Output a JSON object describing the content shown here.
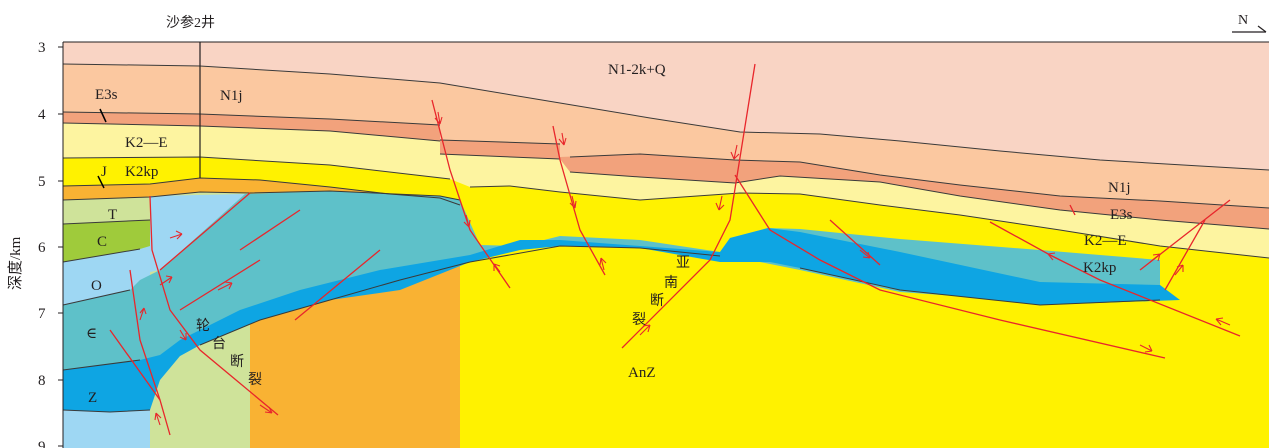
{
  "well": {
    "label": "沙参2井"
  },
  "north": {
    "label": "N"
  },
  "yaxis": {
    "label": "深度/km",
    "ticks": [
      "3",
      "4",
      "5",
      "6",
      "7",
      "8",
      "9"
    ]
  },
  "colors": {
    "n12kq": "#f9d4c4",
    "n1j": "#fbc8a0",
    "e3s": "#f2a27c",
    "k2e": "#fdf4a0",
    "k2kp": "#fff200",
    "jurassic": "#f9b233",
    "triassic": "#cfe39a",
    "carboniferous": "#9fcb3b",
    "ordovician": "#9ed7f3",
    "cambrian": "#5ec1c9",
    "sinian": "#0ea5e3",
    "anz": "#fdf6d2",
    "fault": "#e8262b"
  },
  "units": {
    "n12kq": "N1-2k+Q",
    "n1j_west": "N1j",
    "e3s_west": "E3s",
    "k2e_west": "K2—E",
    "k2kp_west": "K2kp",
    "j": "J",
    "t": "T",
    "c": "C",
    "o": "O",
    "cambrian": "∈",
    "z": "Z",
    "anz": "AnZ",
    "n1j_east": "N1j",
    "e3s_east": "E3s",
    "k2e_east": "K2—E",
    "k2kp_east": "K2kp"
  },
  "faults": {
    "luntai": [
      "轮",
      "台",
      "断",
      "裂"
    ],
    "yanan": [
      "亚",
      "南",
      "断",
      "裂"
    ]
  }
}
